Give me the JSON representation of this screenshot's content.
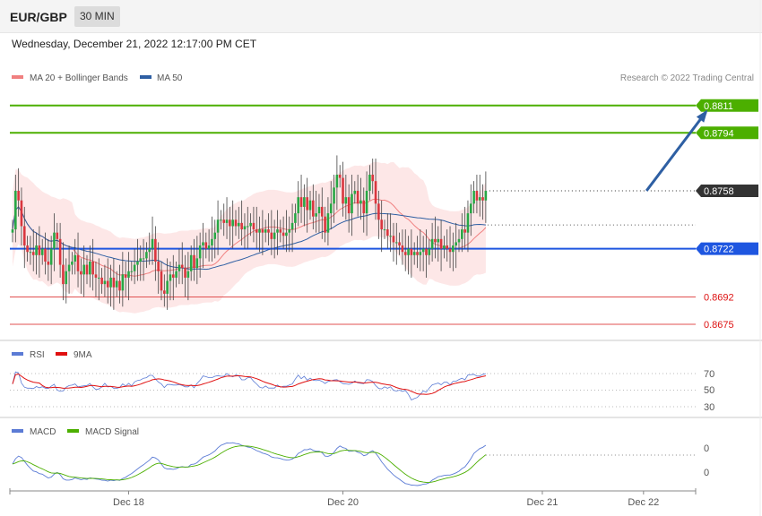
{
  "header": {
    "symbol": "EUR/GBP",
    "timeframe": "30 MIN",
    "datetime": "Wednesday, December 21, 2022 12:17:00 PM CET"
  },
  "copyright": "Research © 2022 Trading Central",
  "colors": {
    "ma20": "#f08080",
    "ma50": "#2e5fa3",
    "green": "#4caf00",
    "blue": "#1e56e0",
    "red": "#e05050",
    "rsi": "#5b7bd5",
    "rsi_ma": "#e01010",
    "macd": "#5b7bd5",
    "macd_signal": "#4caf00"
  },
  "chart_data": [
    {
      "type": "candlestick",
      "legend": [
        {
          "name": "MA 20 + Bollinger Bands",
          "color": "#f08080"
        },
        {
          "name": "MA 50",
          "color": "#2e5fa3"
        }
      ],
      "ylim": [
        0.8665,
        0.8822
      ],
      "x_ticks": [
        {
          "label": "Dec 18",
          "i": 39
        },
        {
          "label": "Dec 20",
          "i": 111
        },
        {
          "label": "Dec 21",
          "i": 178
        },
        {
          "label": "Dec 22",
          "i": 212
        }
      ],
      "levels": [
        {
          "value": 0.8811,
          "label": "0.8811",
          "kind": "resistance"
        },
        {
          "value": 0.8794,
          "label": "0.8794",
          "kind": "resistance"
        },
        {
          "value": 0.8758,
          "label": "0.8758",
          "kind": "current"
        },
        {
          "value": 0.8722,
          "label": "0.8722",
          "kind": "pivot"
        },
        {
          "value": 0.8692,
          "label": "0.8692",
          "kind": "support"
        },
        {
          "value": 0.8675,
          "label": "0.8675",
          "kind": "support"
        }
      ],
      "forecast": {
        "from": [
          213,
          0.8758
        ],
        "to": [
          233,
          0.8807
        ]
      },
      "close": [
        0.8734,
        0.8758,
        0.8752,
        0.8736,
        0.8724,
        0.872,
        0.872,
        0.8718,
        0.8724,
        0.8718,
        0.8722,
        0.8714,
        0.8712,
        0.8722,
        0.8732,
        0.8728,
        0.8712,
        0.87,
        0.8708,
        0.8712,
        0.8714,
        0.8718,
        0.8708,
        0.8706,
        0.8712,
        0.8706,
        0.8714,
        0.8706,
        0.8704,
        0.8704,
        0.87,
        0.8702,
        0.8698,
        0.8704,
        0.8698,
        0.8702,
        0.8696,
        0.8706,
        0.8704,
        0.8708,
        0.8708,
        0.8712,
        0.8714,
        0.8716,
        0.8716,
        0.872,
        0.8722,
        0.8728,
        0.8714,
        0.8708,
        0.8696,
        0.8694,
        0.8702,
        0.8706,
        0.8704,
        0.8708,
        0.8712,
        0.871,
        0.8704,
        0.8708,
        0.8718,
        0.871,
        0.8716,
        0.8724,
        0.8726,
        0.8722,
        0.8724,
        0.8728,
        0.8732,
        0.874,
        0.874,
        0.8738,
        0.874,
        0.8736,
        0.874,
        0.8736,
        0.8738,
        0.8734,
        0.8736,
        0.8736,
        0.8738,
        0.8734,
        0.8732,
        0.8734,
        0.8732,
        0.8734,
        0.8732,
        0.8728,
        0.8732,
        0.8734,
        0.8732,
        0.873,
        0.8732,
        0.8734,
        0.8738,
        0.8744,
        0.8754,
        0.8748,
        0.8754,
        0.8746,
        0.8752,
        0.8742,
        0.8744,
        0.8748,
        0.8742,
        0.8732,
        0.8744,
        0.875,
        0.876,
        0.8768,
        0.8766,
        0.875,
        0.8754,
        0.8744,
        0.8756,
        0.8758,
        0.875,
        0.8752,
        0.8744,
        0.8758,
        0.8768,
        0.8764,
        0.875,
        0.874,
        0.8734,
        0.8734,
        0.873,
        0.873,
        0.8726,
        0.8726,
        0.8724,
        0.872,
        0.8718,
        0.8722,
        0.8718,
        0.872,
        0.8718,
        0.872,
        0.8722,
        0.8718,
        0.8722,
        0.8728,
        0.8726,
        0.8728,
        0.8722,
        0.8724,
        0.8722,
        0.872,
        0.8724,
        0.8726,
        0.8728,
        0.8734,
        0.8732,
        0.8744,
        0.875,
        0.8758,
        0.8752,
        0.8754,
        0.8752,
        0.8758
      ],
      "open": [
        0.8732,
        0.8734,
        0.8758,
        0.8752,
        0.8736,
        0.8724,
        0.872,
        0.872,
        0.8718,
        0.8724,
        0.8718,
        0.8722,
        0.8714,
        0.8712,
        0.8722,
        0.8732,
        0.8728,
        0.8712,
        0.87,
        0.8708,
        0.8712,
        0.8714,
        0.8718,
        0.8708,
        0.8706,
        0.8712,
        0.8706,
        0.8714,
        0.8706,
        0.8704,
        0.8704,
        0.87,
        0.8702,
        0.8698,
        0.8704,
        0.8698,
        0.8702,
        0.8696,
        0.8706,
        0.8704,
        0.8708,
        0.8708,
        0.8712,
        0.8714,
        0.8716,
        0.8716,
        0.872,
        0.8722,
        0.8728,
        0.8714,
        0.8708,
        0.8696,
        0.8694,
        0.8702,
        0.8706,
        0.8704,
        0.8708,
        0.8712,
        0.871,
        0.8704,
        0.8708,
        0.8718,
        0.871,
        0.8716,
        0.8724,
        0.8726,
        0.8722,
        0.8724,
        0.8728,
        0.8732,
        0.874,
        0.874,
        0.8738,
        0.874,
        0.8736,
        0.874,
        0.8736,
        0.8738,
        0.8734,
        0.8736,
        0.8736,
        0.8738,
        0.8734,
        0.8732,
        0.8734,
        0.8732,
        0.8734,
        0.8732,
        0.8728,
        0.8732,
        0.8734,
        0.8732,
        0.873,
        0.8732,
        0.8734,
        0.8738,
        0.8744,
        0.8754,
        0.8748,
        0.8754,
        0.8746,
        0.8752,
        0.8742,
        0.8744,
        0.8748,
        0.8742,
        0.8732,
        0.8744,
        0.875,
        0.876,
        0.8768,
        0.8766,
        0.875,
        0.8754,
        0.8744,
        0.8756,
        0.8758,
        0.875,
        0.8752,
        0.8744,
        0.8758,
        0.8768,
        0.8764,
        0.875,
        0.874,
        0.8734,
        0.8734,
        0.873,
        0.873,
        0.8726,
        0.8726,
        0.8724,
        0.872,
        0.8718,
        0.8722,
        0.8718,
        0.872,
        0.8718,
        0.872,
        0.8722,
        0.8718,
        0.8722,
        0.8728,
        0.8726,
        0.8728,
        0.8722,
        0.8724,
        0.8722,
        0.872,
        0.8724,
        0.8726,
        0.8728,
        0.8734,
        0.8732,
        0.8744,
        0.875,
        0.8758,
        0.8752,
        0.8754,
        0.8752
      ]
    },
    {
      "type": "line",
      "legend": [
        {
          "name": "RSI",
          "color": "#5b7bd5"
        },
        {
          "name": "9MA",
          "color": "#e01010"
        }
      ],
      "y_ticks": [
        70,
        50,
        30
      ],
      "ylim": [
        25,
        75
      ]
    },
    {
      "type": "line",
      "legend": [
        {
          "name": "MACD",
          "color": "#5b7bd5"
        },
        {
          "name": "MACD Signal",
          "color": "#4caf00"
        }
      ],
      "y_ticks": [
        "0",
        "0"
      ]
    }
  ]
}
